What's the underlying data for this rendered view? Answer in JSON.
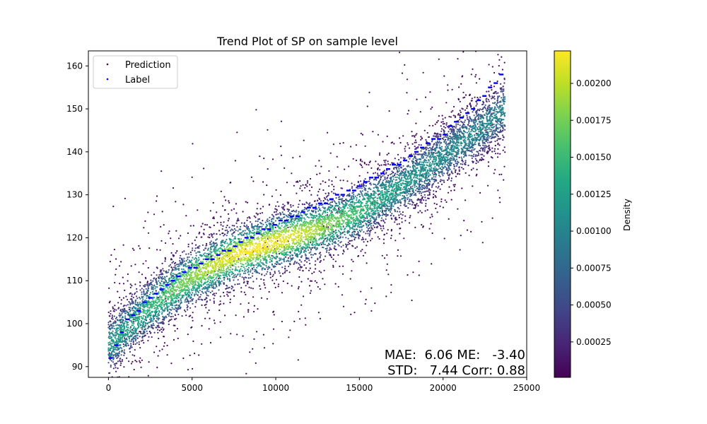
{
  "chart_data": {
    "type": "scatter",
    "title": "Trend Plot of SP on sample level",
    "xlabel": "",
    "ylabel": "",
    "xlim": [
      -1200,
      25000
    ],
    "ylim": [
      87.5,
      163.5
    ],
    "xticks": [
      0,
      5000,
      10000,
      15000,
      20000,
      25000
    ],
    "yticks": [
      90,
      100,
      110,
      120,
      130,
      140,
      150,
      160
    ],
    "n_points": 23700,
    "grid": false,
    "legend": {
      "placement": "top-left",
      "entries": [
        {
          "name": "Prediction",
          "color": "#440154"
        },
        {
          "name": "Label",
          "color": "#0000ff"
        }
      ]
    },
    "series": [
      {
        "name": "Prediction",
        "marker": "dot",
        "colored_by": "Density",
        "trend_x": [
          0,
          1000,
          2500,
          5000,
          7500,
          10000,
          12500,
          15000,
          17500,
          20000,
          22500,
          23700
        ],
        "trend_y": [
          95,
          98.5,
          104,
          111,
          116,
          119,
          122,
          126,
          132,
          139,
          146,
          150
        ],
        "spread_std": 7.44
      },
      {
        "name": "Label",
        "color": "#0000ff",
        "marker": "dash",
        "x": [
          0,
          1000,
          2500,
          5000,
          7500,
          10000,
          12500,
          15000,
          17500,
          20000,
          22500,
          23700
        ],
        "y": [
          91,
          100,
          106,
          113,
          118,
          123,
          127.5,
          132,
          137.5,
          144,
          153,
          159
        ]
      }
    ],
    "colorbar": {
      "label": "Density",
      "colormap": "viridis",
      "range": [
        1e-05,
        0.00222
      ],
      "ticks": [
        0.00025,
        0.0005,
        0.00075,
        0.001,
        0.00125,
        0.0015,
        0.00175,
        0.002
      ],
      "tick_labels": [
        "0.00025",
        "0.00050",
        "0.00075",
        "0.00100",
        "0.00125",
        "0.00150",
        "0.00175",
        "0.00200"
      ]
    },
    "stats": {
      "line1": "MAE:  6.06 ME:   -3.40",
      "line2": "STD:   7.44 Corr: 0.88"
    }
  }
}
